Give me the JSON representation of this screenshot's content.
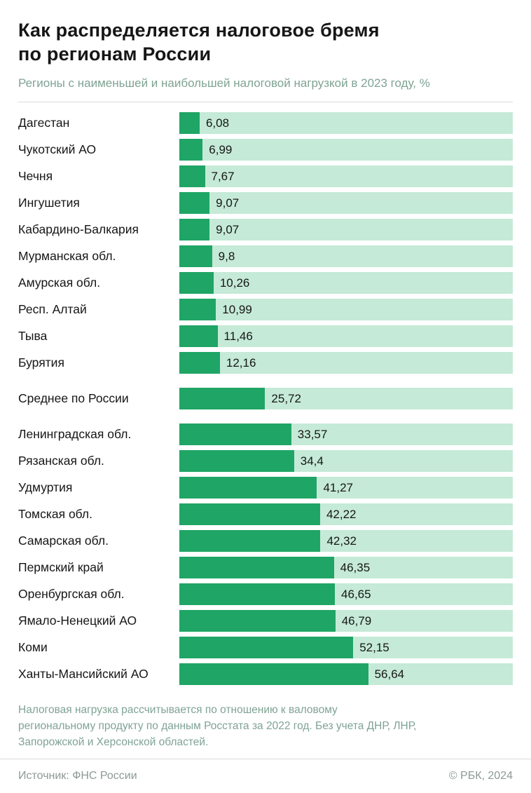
{
  "header": {
    "title_lines": [
      "Как распределяется налоговое бремя",
      "по регионам России"
    ],
    "subtitle": "Регионы с наименьшей и наибольшей налоговой нагрузкой в 2023 году, %"
  },
  "chart_data": {
    "type": "bar",
    "orientation": "horizontal",
    "title": "Как распределяется налоговое бремя по регионам России",
    "subtitle": "Регионы с наименьшей и наибольшей налоговой нагрузкой в 2023 году, %",
    "unit": "%",
    "xlim": [
      0,
      100
    ],
    "grid": false,
    "legend": "none",
    "colors": {
      "bar": "#1FA565",
      "track": "#C5EAD7"
    },
    "groups": [
      {
        "name": "lowest-burden",
        "rows": [
          {
            "label": "Дагестан",
            "value": 6.08,
            "display": "6,08"
          },
          {
            "label": "Чукотский АО",
            "value": 6.99,
            "display": "6,99"
          },
          {
            "label": "Чечня",
            "value": 7.67,
            "display": "7,67"
          },
          {
            "label": "Ингушетия",
            "value": 9.07,
            "display": "9,07"
          },
          {
            "label": "Кабардино-Балкария",
            "value": 9.07,
            "display": "9,07"
          },
          {
            "label": "Мурманская обл.",
            "value": 9.8,
            "display": "9,8"
          },
          {
            "label": "Амурская обл.",
            "value": 10.26,
            "display": "10,26"
          },
          {
            "label": "Респ. Алтай",
            "value": 10.99,
            "display": "10,99"
          },
          {
            "label": "Тыва",
            "value": 11.46,
            "display": "11,46"
          },
          {
            "label": "Бурятия",
            "value": 12.16,
            "display": "12,16"
          }
        ]
      },
      {
        "name": "russia-average",
        "rows": [
          {
            "label": "Среднее по России",
            "value": 25.72,
            "display": "25,72"
          }
        ]
      },
      {
        "name": "highest-burden",
        "rows": [
          {
            "label": "Ленинградская обл.",
            "value": 33.57,
            "display": "33,57"
          },
          {
            "label": "Рязанская обл.",
            "value": 34.4,
            "display": "34,4"
          },
          {
            "label": "Удмуртия",
            "value": 41.27,
            "display": "41,27"
          },
          {
            "label": "Томская обл.",
            "value": 42.22,
            "display": "42,22"
          },
          {
            "label": "Самарская обл.",
            "value": 42.32,
            "display": "42,32"
          },
          {
            "label": "Пермский край",
            "value": 46.35,
            "display": "46,35"
          },
          {
            "label": "Оренбургская обл.",
            "value": 46.65,
            "display": "46,65"
          },
          {
            "label": "Ямало-Ненецкий АО",
            "value": 46.79,
            "display": "46,79"
          },
          {
            "label": "Коми",
            "value": 52.15,
            "display": "52,15"
          },
          {
            "label": "Ханты-Мансийский АО",
            "value": 56.64,
            "display": "56,64"
          }
        ]
      }
    ]
  },
  "footnote": {
    "lines": [
      "Налоговая нагрузка рассчитывается по отношению к валовому",
      "региональному продукту по данным Росстата за 2022 год. Без учета ДНР, ЛНР,",
      "Запорожской и Херсонской областей."
    ]
  },
  "footer": {
    "source": "Источник: ФНС России",
    "copyright": "© РБК, 2024"
  },
  "colors": {
    "title": "#161616",
    "muted": "#7FA394",
    "footer": "#8D9A93",
    "divider": "#DADADA"
  }
}
